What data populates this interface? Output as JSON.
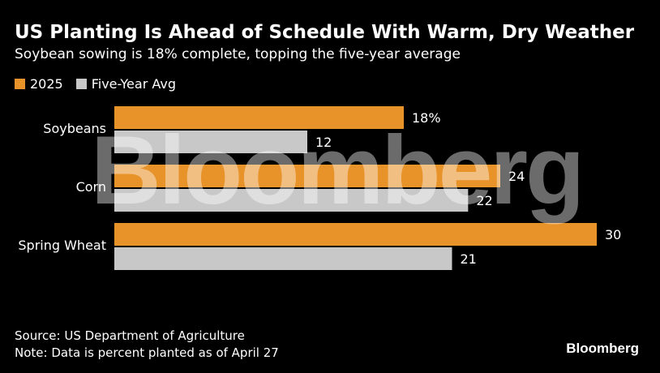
{
  "header": {
    "title": "US Planting Is Ahead of Schedule With Warm, Dry Weather",
    "subtitle": "Soybean sowing is 18% complete, topping the five-year average"
  },
  "colors": {
    "series_2025": "#E8922A",
    "series_avg": "#C8C8C8",
    "background": "#000000"
  },
  "chart_data": {
    "type": "bar",
    "orientation": "horizontal",
    "categories": [
      "Soybeans",
      "Corn",
      "Spring Wheat"
    ],
    "series": [
      {
        "name": "2025",
        "values": [
          18,
          24,
          30
        ],
        "labels": [
          "18%",
          "24",
          "30"
        ]
      },
      {
        "name": "Five-Year Avg",
        "values": [
          12,
          22,
          21
        ],
        "labels": [
          "12",
          "22",
          "21"
        ]
      }
    ],
    "xlim": [
      0,
      30
    ],
    "legend_position": "top-left",
    "grid": false
  },
  "footer": {
    "source": "Source: US Department of Agriculture",
    "note": "Note: Data is percent planted as of April 27"
  },
  "watermark": "Bloomberg",
  "brand": "Bloomberg"
}
